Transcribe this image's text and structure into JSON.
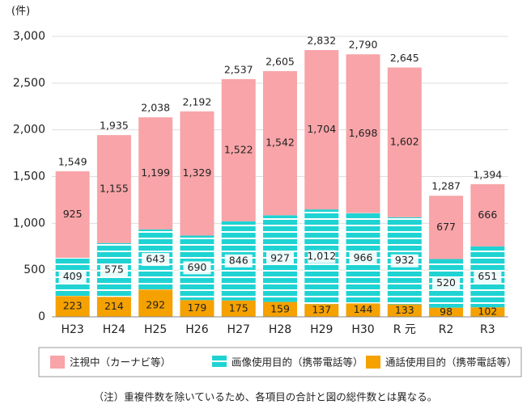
{
  "chart_data": {
    "type": "stacked_bar",
    "unit_label": "(件)",
    "categories": [
      "H23",
      "H24",
      "H25",
      "H26",
      "H27",
      "H28",
      "H29",
      "H30",
      "R 元",
      "R2",
      "R3"
    ],
    "series": [
      {
        "name": "通話使用目的（携帯電話等）",
        "color": "#f5a100",
        "values": [
          223,
          214,
          292,
          179,
          175,
          159,
          137,
          144,
          133,
          98,
          102
        ]
      },
      {
        "name": "画像使用目的（携帯電話等）",
        "color": "#1fd3d3",
        "values": [
          409,
          575,
          643,
          690,
          846,
          927,
          1012,
          966,
          932,
          520,
          651
        ],
        "value_labels": [
          "409",
          "575",
          "643",
          "690",
          "846",
          "927",
          "1,012",
          "966",
          "932",
          "520",
          "651"
        ]
      },
      {
        "name": "注視中（カーナビ等）",
        "color": "#f8a4a8",
        "values": [
          925,
          1155,
          1199,
          1329,
          1522,
          1542,
          1704,
          1698,
          1602,
          677,
          666
        ],
        "value_labels": [
          "925",
          "1,155",
          "1,199",
          "1,329",
          "1,522",
          "1,542",
          "1,704",
          "1,698",
          "1,602",
          "677",
          "666"
        ]
      }
    ],
    "totals": {
      "values": [
        1549,
        1935,
        2038,
        2192,
        2537,
        2605,
        2832,
        2790,
        2645,
        1287,
        1394
      ],
      "value_labels": [
        "1,549",
        "1,935",
        "2,038",
        "2,192",
        "2,537",
        "2,605",
        "2,832",
        "2,790",
        "2,645",
        "1,287",
        "1,394"
      ]
    },
    "ylim": [
      0,
      3000
    ],
    "yticks": [
      0,
      500,
      {
        "value": 1000,
        "label": "1,000"
      },
      {
        "value": 1500,
        "label": "1,500"
      },
      {
        "value": 2000,
        "label": "2,000"
      },
      {
        "value": 2500,
        "label": "2,500"
      },
      {
        "value": 3000,
        "label": "3,000"
      }
    ],
    "grid": true,
    "note": "（注）重複件数を除いているため、各項目の合計と図の総件数とは異なる。"
  }
}
